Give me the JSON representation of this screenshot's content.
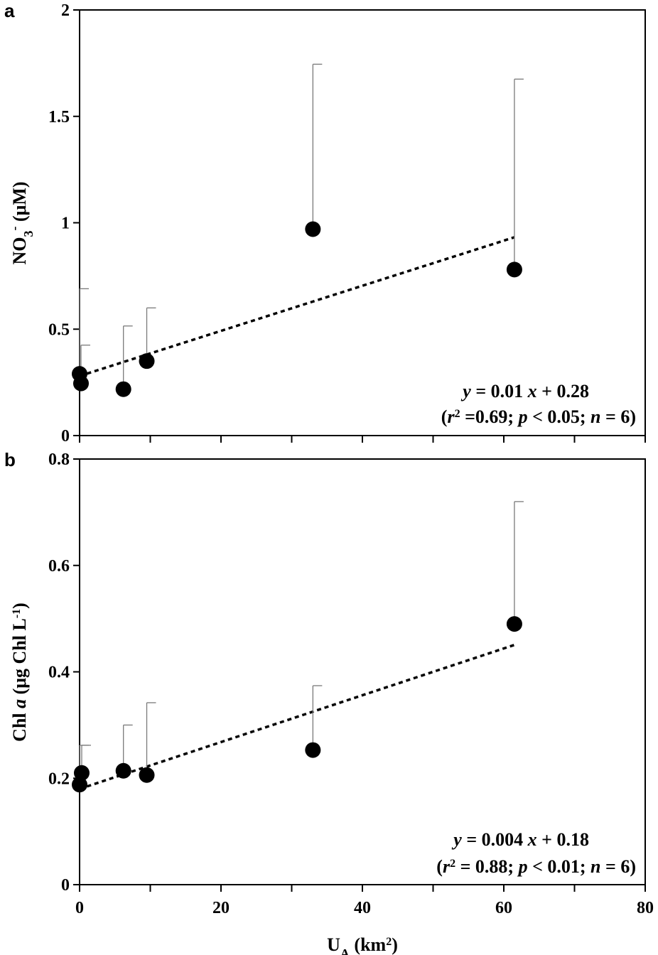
{
  "chart_data": [
    {
      "panel": "a",
      "type": "scatter",
      "ylabel": {
        "main": "NO",
        "sub": "3",
        "sup": "-",
        "unit": " (μM)"
      },
      "xlim": [
        0,
        80
      ],
      "ylim": [
        0,
        2
      ],
      "x_ticks": [
        0,
        20,
        40,
        60,
        80
      ],
      "x_minor": [
        10,
        30,
        50,
        70
      ],
      "y_ticks": [
        0,
        0.5,
        1,
        1.5,
        2
      ],
      "y_tick_labels": [
        "0",
        "0.5",
        "1",
        "1.5",
        "2"
      ],
      "points": [
        {
          "x": 0.0,
          "y": 0.29,
          "err_upper": 0.69
        },
        {
          "x": 0.2,
          "y": 0.245,
          "err_upper": 0.425
        },
        {
          "x": 6.2,
          "y": 0.218,
          "err_upper": 0.515
        },
        {
          "x": 9.5,
          "y": 0.35,
          "err_upper": 0.6
        },
        {
          "x": 33.0,
          "y": 0.97,
          "err_upper": 1.745
        },
        {
          "x": 61.5,
          "y": 0.78,
          "err_upper": 1.675
        }
      ],
      "fit": {
        "x_start": 0,
        "x_end": 61.5,
        "slope": 0.0106,
        "intercept": 0.28
      },
      "equation": {
        "line1": {
          "y": "y",
          "eq": " = 0.01 ",
          "x": "x",
          "rest": " + 0.28"
        },
        "line2": {
          "open": "(",
          "r": "r",
          "sup": "2",
          "a": " =0.69; ",
          "p": "p",
          "b": " < 0.05; ",
          "n": "n",
          "c": " = 6)"
        }
      }
    },
    {
      "panel": "b",
      "type": "scatter",
      "ylabel": {
        "pre": "Chl ",
        "italic": "a",
        "unit": " (μg Chl L",
        "sup": "-1",
        "close": ")"
      },
      "xlabel": {
        "main": "U",
        "sub": "A",
        "unit": " (km",
        "sup": "2",
        "close": ")"
      },
      "xlim": [
        0,
        80
      ],
      "ylim": [
        0,
        0.8
      ],
      "x_ticks": [
        0,
        20,
        40,
        60,
        80
      ],
      "x_tick_labels": [
        "0",
        "20",
        "40",
        "60",
        "80"
      ],
      "x_minor": [
        10,
        30,
        50,
        70
      ],
      "y_ticks": [
        0,
        0.2,
        0.4,
        0.6,
        0.8
      ],
      "y_tick_labels": [
        "0",
        "0.2",
        "0.4",
        "0.6",
        "0.8"
      ],
      "points": [
        {
          "x": 0.0,
          "y": 0.188,
          "err_upper": 0.262
        },
        {
          "x": 0.3,
          "y": 0.21,
          "err_upper": 0.262
        },
        {
          "x": 6.2,
          "y": 0.214,
          "err_upper": 0.3
        },
        {
          "x": 9.5,
          "y": 0.206,
          "err_upper": 0.342
        },
        {
          "x": 33.0,
          "y": 0.253,
          "err_upper": 0.374
        },
        {
          "x": 61.5,
          "y": 0.49,
          "err_upper": 0.72
        }
      ],
      "fit": {
        "x_start": 0,
        "x_end": 61.5,
        "slope": 0.0044,
        "intercept": 0.18
      },
      "equation": {
        "line1": {
          "y": "y",
          "eq": " = 0.004 ",
          "x": "x",
          "rest": " + 0.18"
        },
        "line2": {
          "open": "(",
          "r": "r",
          "sup": "2",
          "a": " = 0.88; ",
          "p": "p",
          "b": " < 0.01; ",
          "n": "n",
          "c": " = 6)"
        }
      }
    }
  ]
}
